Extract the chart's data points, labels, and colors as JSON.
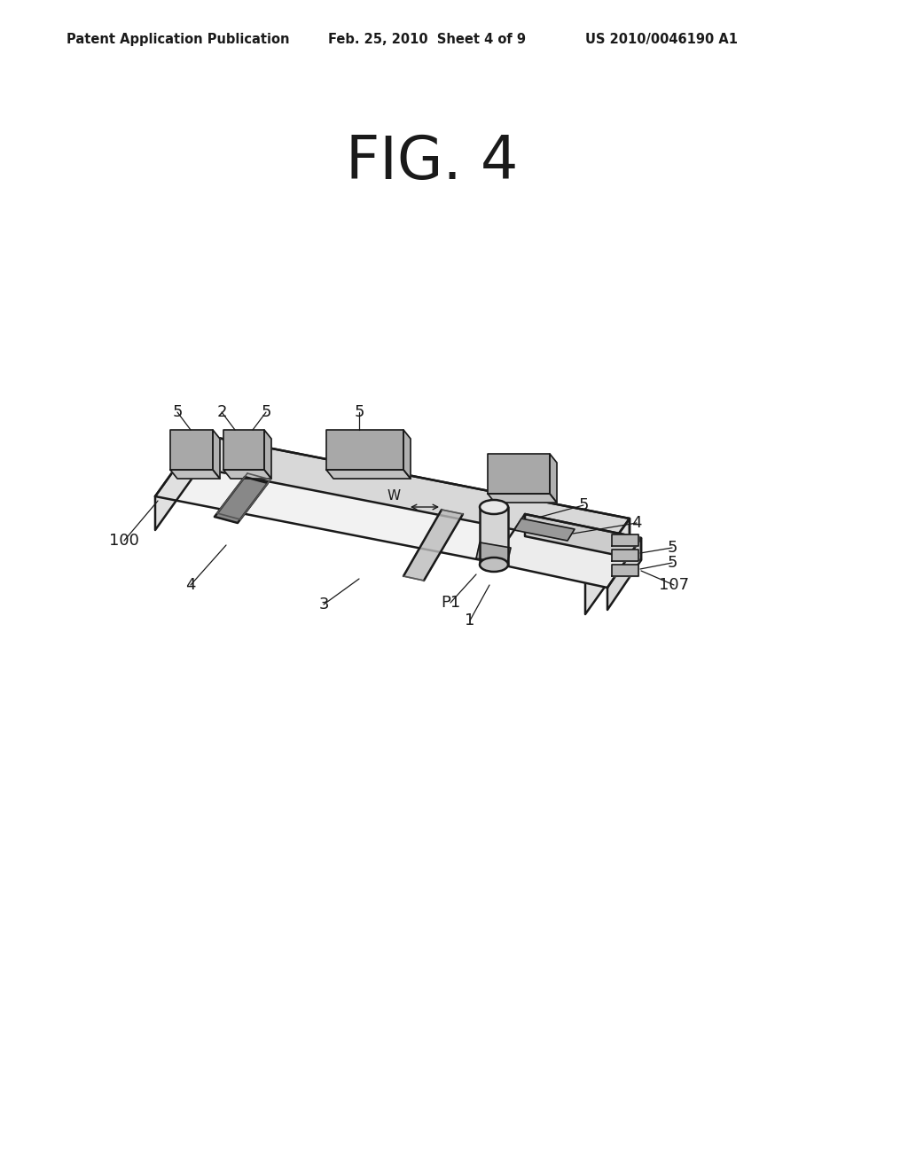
{
  "bg_color": "#ffffff",
  "line_color": "#1a1a1a",
  "header_left": "Patent Application Publication",
  "header_mid": "Feb. 25, 2010  Sheet 4 of 9",
  "header_right": "US 2010/0046190 A1",
  "fig_label": "FIG. 4"
}
